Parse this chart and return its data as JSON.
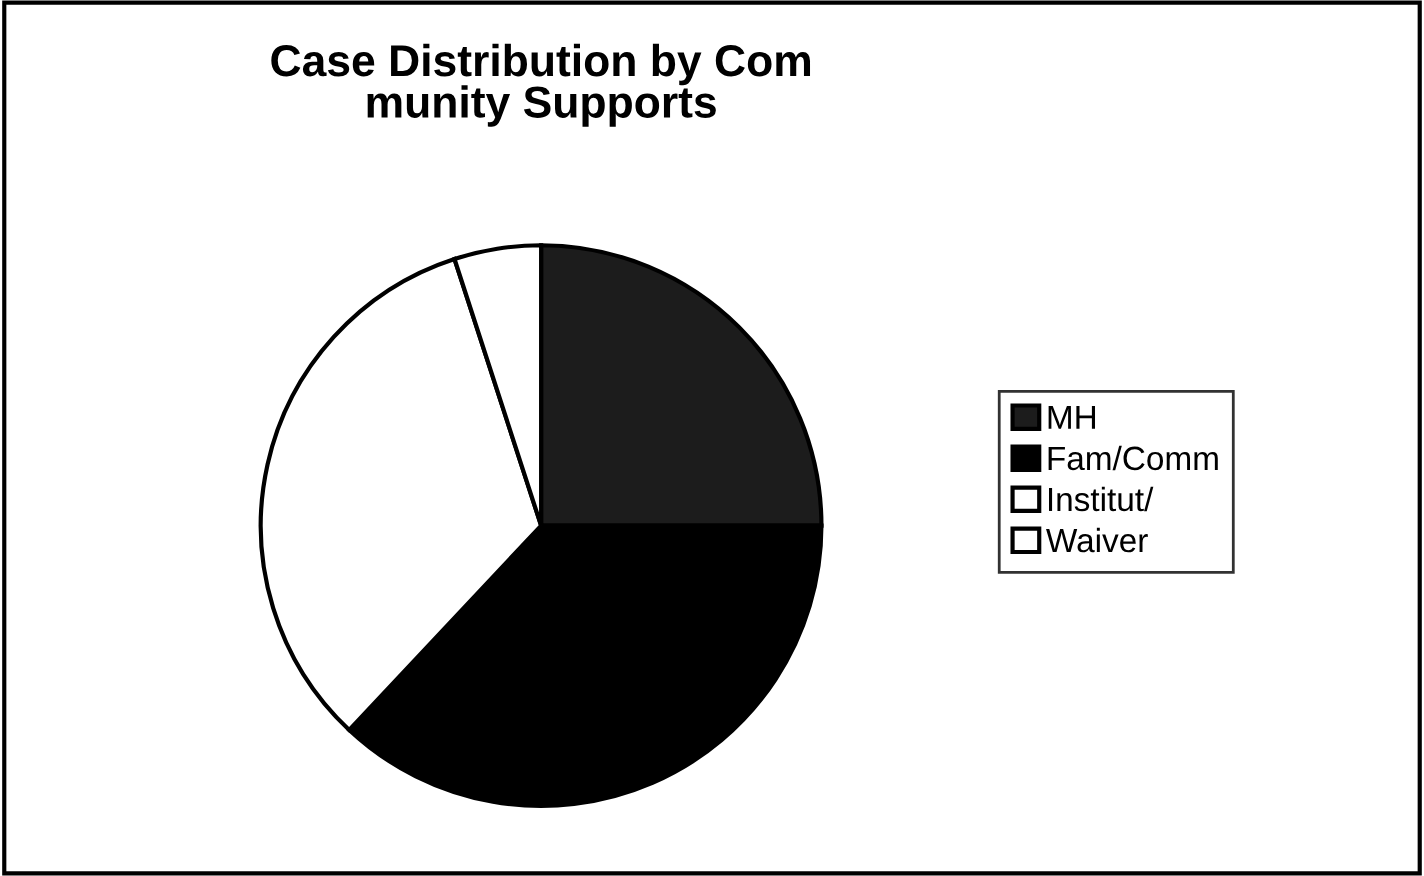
{
  "chart_data": {
    "type": "pie",
    "title": "Case Distribution by Com\nmunity Supports",
    "categories": [
      "MH",
      "Fam/Comm",
      "Institut/",
      "Waiver"
    ],
    "values": [
      25,
      37,
      33,
      5
    ],
    "colors": [
      "#1c1c1c",
      "#000000",
      "#ffffff",
      "#ffffff"
    ],
    "legend": "right"
  }
}
